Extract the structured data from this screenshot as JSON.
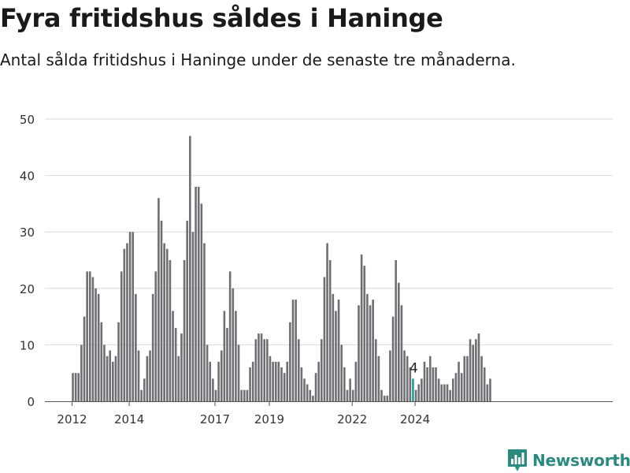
{
  "title": "Fyra fritidshus såldes i Haninge",
  "subtitle": "Antal sålda fritidshus i Haninge under de senaste tre månaderna.",
  "brand": "Newsworthy",
  "colors": {
    "bar": "#6f6e73",
    "highlight": "#1f9e94",
    "grid": "#d9d9d9",
    "axis": "#555555",
    "text": "#333333",
    "brand": "#2a8a80"
  },
  "chart_data": {
    "type": "bar",
    "title": "",
    "xlabel": "",
    "ylabel": "",
    "ylim": [
      0,
      50
    ],
    "yticks": [
      0,
      10,
      20,
      30,
      40,
      50
    ],
    "grid": true,
    "x_tick_labels": [
      "2012",
      "2014",
      "2017",
      "2019",
      "2022",
      "2024"
    ],
    "x_tick_bar_index": [
      0,
      20,
      50,
      69,
      98,
      120
    ],
    "values": [
      5,
      5,
      5,
      10,
      15,
      23,
      23,
      22,
      20,
      19,
      14,
      10,
      8,
      9,
      7,
      8,
      14,
      23,
      27,
      28,
      30,
      30,
      19,
      9,
      2,
      4,
      8,
      9,
      19,
      23,
      36,
      32,
      28,
      27,
      25,
      16,
      13,
      8,
      12,
      25,
      32,
      47,
      30,
      38,
      38,
      35,
      28,
      10,
      7,
      4,
      2,
      7,
      9,
      16,
      13,
      23,
      20,
      16,
      10,
      2,
      2,
      2,
      6,
      7,
      11,
      12,
      12,
      11,
      11,
      8,
      7,
      7,
      7,
      6,
      5,
      7,
      14,
      18,
      18,
      11,
      6,
      4,
      3,
      2,
      1,
      5,
      7,
      11,
      22,
      28,
      25,
      19,
      16,
      18,
      10,
      6,
      2,
      4,
      2,
      7,
      17,
      26,
      24,
      19,
      17,
      18,
      11,
      8,
      2,
      1,
      1,
      9,
      15,
      25,
      21,
      17,
      9,
      8,
      6,
      4,
      2,
      3,
      4,
      7,
      6,
      8,
      6,
      6,
      4,
      3,
      3,
      3,
      2,
      4,
      5,
      7,
      5,
      8,
      8,
      11,
      10,
      11,
      12,
      8,
      6,
      3,
      4
    ],
    "highlight_index": 119,
    "highlight_label": "4"
  }
}
